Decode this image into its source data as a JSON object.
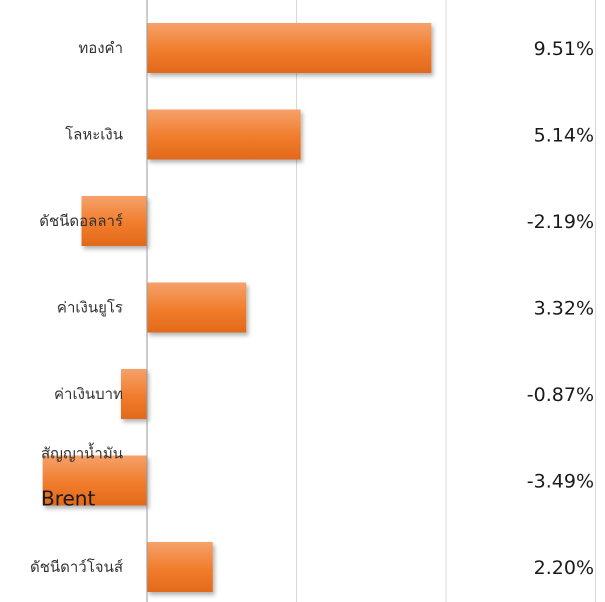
{
  "chart_data": {
    "type": "bar",
    "orientation": "horizontal",
    "categories": [
      "ทองคำ",
      "โลหะเงิน",
      "ดัชนีดอลลาร์",
      "ค่าเงินยูโร",
      "ค่าเงินบาท",
      "สัญญาน้ำมัน Brent",
      "ดัชนีดาว์โจนส์"
    ],
    "category_lines": [
      [
        "ทองคำ"
      ],
      [
        "โลหะเงิน"
      ],
      [
        "ดัชนีดอลลาร์"
      ],
      [
        "ค่าเงินยูโร"
      ],
      [
        "ค่าเงินบาท"
      ],
      [
        "สัญญาน้ำมัน",
        "Brent"
      ],
      [
        "ดัชนีดาว์โจนส์"
      ]
    ],
    "values": [
      9.51,
      5.14,
      -2.19,
      3.32,
      -0.87,
      -3.49,
      2.2
    ],
    "value_labels": [
      "9.51%",
      "5.14%",
      "-2.19%",
      "3.32%",
      "-0.87%",
      "-3.49%",
      "2.20%"
    ],
    "xlim": [
      -5,
      15
    ],
    "grid": true,
    "bar_color": "#F07C2C"
  }
}
